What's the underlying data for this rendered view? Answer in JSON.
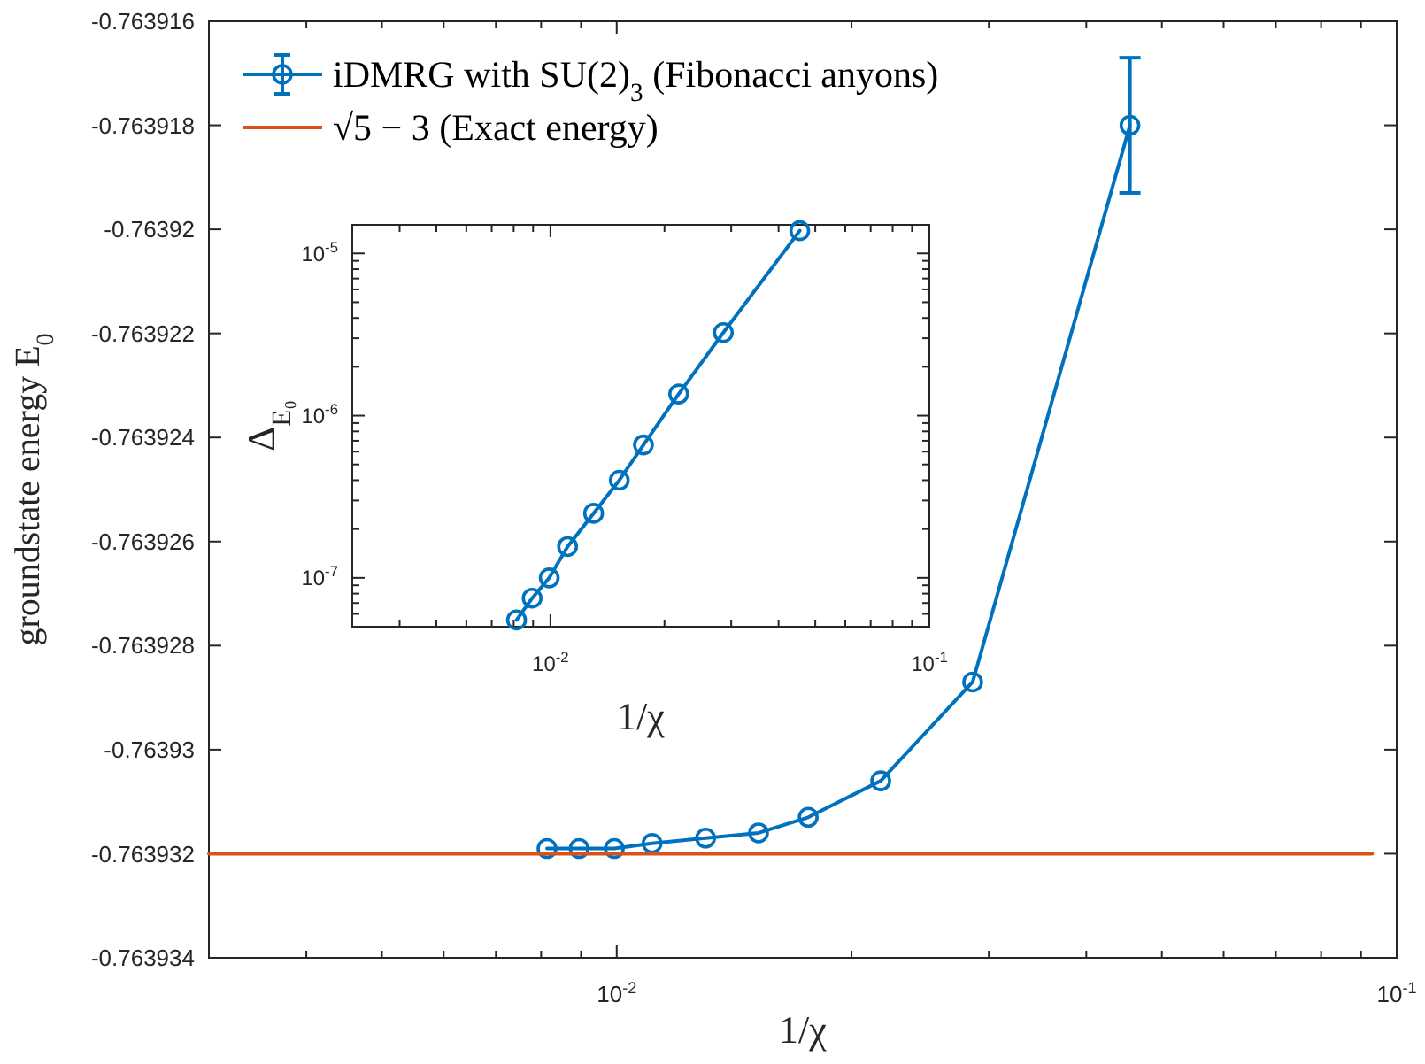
{
  "chart_data": [
    {
      "type": "line",
      "xlabel": "1/χ",
      "ylabel": "groundstate energy E$_{0}$",
      "log": "x",
      "grid": false,
      "legend": "top left",
      "marker": "circle",
      "line_style": "solid",
      "xlim": [
        0.003,
        0.1
      ],
      "xticks": [
        {
          "value": 0.004,
          "label": null
        },
        {
          "value": 0.005,
          "label": null
        },
        {
          "value": 0.006,
          "label": null
        },
        {
          "value": 0.007,
          "label": null
        },
        {
          "value": 0.008,
          "label": null
        },
        {
          "value": 0.009,
          "label": null
        },
        {
          "value": 0.01,
          "label": "10$^{-2}$"
        },
        {
          "value": 0.02,
          "label": null
        },
        {
          "value": 0.03,
          "label": null
        },
        {
          "value": 0.04,
          "label": null
        },
        {
          "value": 0.05,
          "label": null
        },
        {
          "value": 0.06,
          "label": null
        },
        {
          "value": 0.07,
          "label": null
        },
        {
          "value": 0.08,
          "label": null
        },
        {
          "value": 0.09,
          "label": null
        },
        {
          "value": 0.1,
          "label": "10$^{-1}$"
        }
      ],
      "ylim": [
        -0.763934,
        -0.763916
      ],
      "yticks": [
        -0.763934,
        -0.763932,
        -0.76393,
        -0.763928,
        -0.763926,
        -0.763924,
        -0.763922,
        -0.76392,
        -0.763918,
        -0.763916
      ],
      "series": [
        {
          "name": "iDMRG with SU(2)$_{3}$ (Fibonacci anyons)",
          "color": "#0072bd",
          "x": [
            0.00814,
            0.00895,
            0.00993,
            0.0111,
            0.013,
            0.0152,
            0.0176,
            0.0218,
            0.0286,
            0.0455
          ],
          "values": [
            -0.7639319,
            -0.7639319,
            -0.7639319,
            -0.7639318,
            -0.7639317,
            -0.7639316,
            -0.7639313,
            -0.7639306,
            -0.7639287,
            -0.763918
          ],
          "errors": [
            null,
            null,
            null,
            null,
            null,
            null,
            null,
            null,
            null,
            1.3e-06
          ]
        },
        {
          "name": "√5 − 3 (Exact energy)",
          "color": "#d95319",
          "marker": "none",
          "x": [
            0.003,
            0.093
          ],
          "values": [
            -0.763932,
            -0.763932
          ]
        }
      ]
    },
    {
      "type": "line",
      "xlabel": "1/χ",
      "ylabel": "Δ$_{E₀}$",
      "log": "xy",
      "grid": false,
      "marker": "circle",
      "line_style": "solid",
      "xlim": [
        0.003,
        0.1
      ],
      "xticks": [
        {
          "value": 0.004,
          "label": null
        },
        {
          "value": 0.005,
          "label": null
        },
        {
          "value": 0.006,
          "label": null
        },
        {
          "value": 0.007,
          "label": null
        },
        {
          "value": 0.008,
          "label": null
        },
        {
          "value": 0.009,
          "label": null
        },
        {
          "value": 0.01,
          "label": "10$^{-2}$"
        },
        {
          "value": 0.02,
          "label": null
        },
        {
          "value": 0.03,
          "label": null
        },
        {
          "value": 0.04,
          "label": null
        },
        {
          "value": 0.05,
          "label": null
        },
        {
          "value": 0.06,
          "label": null
        },
        {
          "value": 0.07,
          "label": null
        },
        {
          "value": 0.08,
          "label": null
        },
        {
          "value": 0.09,
          "label": null
        },
        {
          "value": 0.1,
          "label": "10$^{-1}$"
        }
      ],
      "ylim": [
        5e-08,
        1.5e-05
      ],
      "yticks": [
        {
          "value": 6e-08,
          "label": null
        },
        {
          "value": 7e-08,
          "label": null
        },
        {
          "value": 8e-08,
          "label": null
        },
        {
          "value": 9e-08,
          "label": null
        },
        {
          "value": 1e-07,
          "label": "10$^{-7}$"
        },
        {
          "value": 2e-07,
          "label": null
        },
        {
          "value": 3e-07,
          "label": null
        },
        {
          "value": 4e-07,
          "label": null
        },
        {
          "value": 5e-07,
          "label": null
        },
        {
          "value": 6e-07,
          "label": null
        },
        {
          "value": 7e-07,
          "label": null
        },
        {
          "value": 8e-07,
          "label": null
        },
        {
          "value": 9e-07,
          "label": null
        },
        {
          "value": 1e-06,
          "label": "10$^{-6}$"
        },
        {
          "value": 2e-06,
          "label": null
        },
        {
          "value": 3e-06,
          "label": null
        },
        {
          "value": 4e-06,
          "label": null
        },
        {
          "value": 5e-06,
          "label": null
        },
        {
          "value": 6e-06,
          "label": null
        },
        {
          "value": 7e-06,
          "label": null
        },
        {
          "value": 8e-06,
          "label": null
        },
        {
          "value": 9e-06,
          "label": null
        },
        {
          "value": 1e-05,
          "label": "10$^{-5}$"
        }
      ],
      "series": [
        {
          "color": "#0072bd",
          "x": [
            0.00814,
            0.00895,
            0.00993,
            0.0111,
            0.013,
            0.0152,
            0.0176,
            0.0218,
            0.0286,
            0.0455
          ],
          "values": [
            5.5e-08,
            7.5e-08,
            1e-07,
            1.56e-07,
            2.5e-07,
            4e-07,
            6.6e-07,
            1.36e-06,
            3.25e-06,
            1.38e-05
          ]
        }
      ]
    }
  ]
}
